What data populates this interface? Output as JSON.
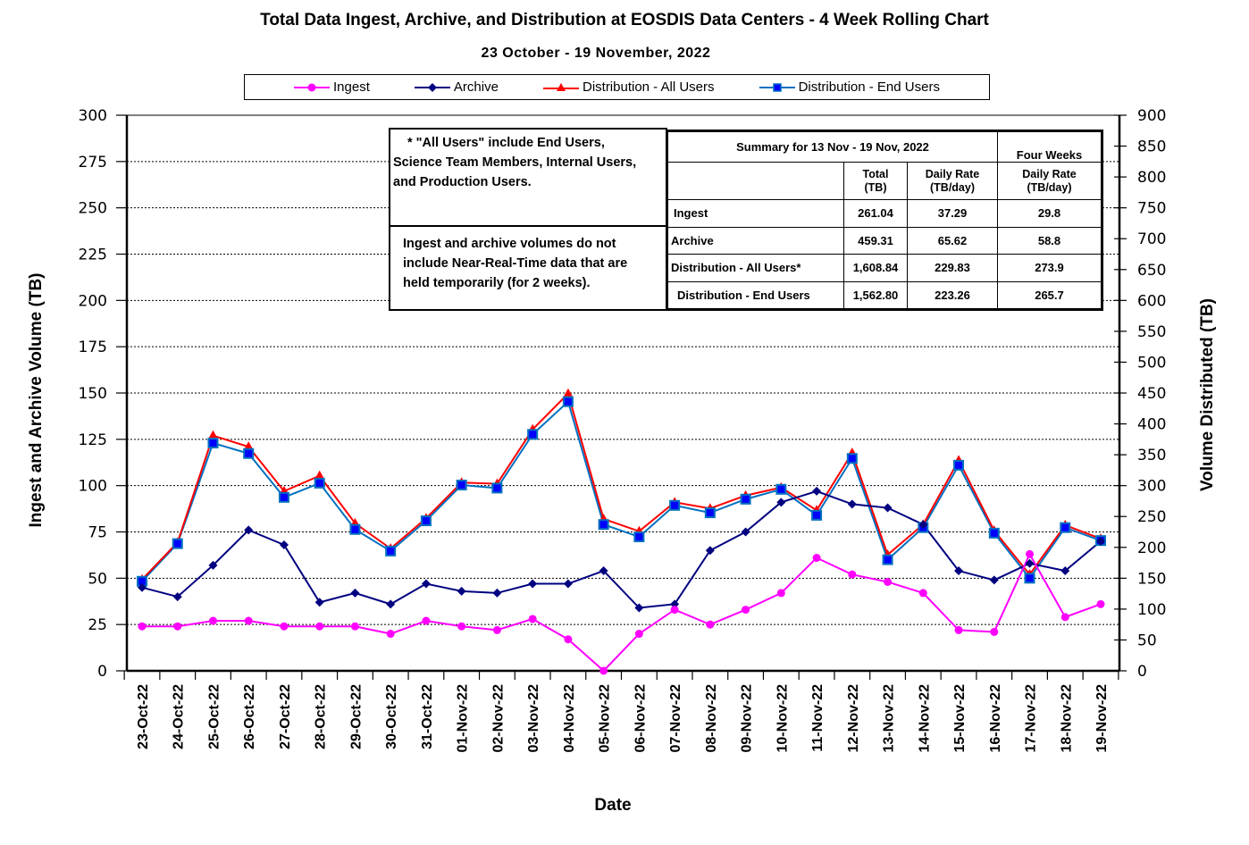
{
  "title": "Total Data Ingest, Archive, and  Distribution at EOSDIS Data Centers - 4 Week Rolling Chart",
  "subtitle": "23  October   - 19  November,  2022",
  "legend": [
    {
      "label": "Ingest",
      "color": "#FF00FF",
      "marker": "circle"
    },
    {
      "label": "Archive",
      "color": "#000080",
      "marker": "diamond"
    },
    {
      "label": "Distribution - All Users",
      "color": "#FF0000",
      "marker": "triangle"
    },
    {
      "label": "Distribution - End Users",
      "color": "#0070C0",
      "marker": "square",
      "marker_fill": "#0000FF"
    }
  ],
  "notes": {
    "all_users": "* \"All Users\" include End Users, Science Team Members,  Internal Users, and Production Users.",
    "all_users_lines": [
      "* \"All Users\" include End Users,",
      "Science Team Members,  Internal Users,",
      "and Production Users."
    ],
    "nrt_lines": [
      "Ingest and archive volumes do not",
      "include Near-Real-Time data that are",
      "held temporarily (for 2 weeks)."
    ]
  },
  "summary": {
    "title": "Summary  for  13  Nov   -  19  Nov,  2022",
    "four_weeks": "Four Weeks",
    "col_total": [
      "Total",
      "(TB)"
    ],
    "col_daily": [
      "Daily Rate",
      "(TB/day)"
    ],
    "col_four_daily": [
      "Daily Rate",
      "(TB/day)"
    ],
    "rows": [
      {
        "label": "Ingest",
        "total": "261.04",
        "daily": "37.29",
        "four_week_daily": "29.8"
      },
      {
        "label": "Archive",
        "total": "459.31",
        "daily": "65.62",
        "four_week_daily": "58.8"
      },
      {
        "label": "Distribution - All Users*",
        "total": "1,608.84",
        "daily": "229.83",
        "four_week_daily": "273.9"
      },
      {
        "label": "Distribution - End Users",
        "total": "1,562.80",
        "daily": "223.26",
        "four_week_daily": "265.7"
      }
    ]
  },
  "chart_data": {
    "type": "line",
    "title": "Total Data Ingest, Archive, and  Distribution at EOSDIS Data Centers - 4 Week Rolling Chart",
    "subtitle": "23  October   - 19  November,  2022",
    "xlabel": "Date",
    "ylabel": "Ingest and Archive Volume (TB)",
    "y2label": "Volume Distributed (TB)",
    "ylim": [
      0,
      300
    ],
    "y2lim": [
      0,
      900
    ],
    "yticks": [
      0,
      25,
      50,
      75,
      100,
      125,
      150,
      175,
      200,
      225,
      250,
      275,
      300
    ],
    "y2ticks": [
      0,
      50,
      100,
      150,
      200,
      250,
      300,
      350,
      400,
      450,
      500,
      550,
      600,
      650,
      700,
      750,
      800,
      850,
      900
    ],
    "grid": "horizontal dotted",
    "legend_position": "top",
    "categories": [
      "23-Oct-22",
      "24-Oct-22",
      "25-Oct-22",
      "26-Oct-22",
      "27-Oct-22",
      "28-Oct-22",
      "29-Oct-22",
      "30-Oct-22",
      "31-Oct-22",
      "01-Nov-22",
      "02-Nov-22",
      "03-Nov-22",
      "04-Nov-22",
      "05-Nov-22",
      "06-Nov-22",
      "07-Nov-22",
      "08-Nov-22",
      "09-Nov-22",
      "10-Nov-22",
      "11-Nov-22",
      "12-Nov-22",
      "13-Nov-22",
      "14-Nov-22",
      "15-Nov-22",
      "16-Nov-22",
      "17-Nov-22",
      "18-Nov-22",
      "19-Nov-22"
    ],
    "series": [
      {
        "name": "Ingest",
        "axis": "left",
        "color": "#FF00FF",
        "marker": "circle",
        "values": [
          24,
          24,
          27,
          27,
          24,
          24,
          24,
          20,
          27,
          24,
          22,
          28,
          17,
          0,
          20,
          33,
          25,
          33,
          42,
          61,
          52,
          48,
          42,
          22,
          21,
          63,
          29,
          36
        ]
      },
      {
        "name": "Archive",
        "axis": "left",
        "color": "#000080",
        "marker": "diamond",
        "values": [
          45,
          40,
          57,
          76,
          68,
          37,
          42,
          36,
          47,
          43,
          42,
          47,
          47,
          54,
          34,
          36,
          65,
          75,
          91,
          97,
          90,
          88,
          79,
          54,
          49,
          58,
          54,
          70
        ]
      },
      {
        "name": "Distribution - All Users",
        "axis": "right",
        "color": "#FF0000",
        "marker": "triangle",
        "values": [
          148,
          208,
          381,
          363,
          291,
          316,
          239,
          198,
          247,
          305,
          303,
          391,
          449,
          246,
          226,
          273,
          263,
          284,
          297,
          260,
          353,
          188,
          237,
          341,
          227,
          156,
          236,
          214
        ]
      },
      {
        "name": "Distribution - End Users",
        "axis": "right",
        "color": "#0070C0",
        "marker": "square",
        "values": [
          145,
          206,
          369,
          352,
          281,
          304,
          229,
          194,
          243,
          301,
          296,
          383,
          436,
          237,
          217,
          268,
          256,
          278,
          294,
          252,
          344,
          180,
          232,
          333,
          223,
          150,
          232,
          211
        ]
      }
    ]
  }
}
